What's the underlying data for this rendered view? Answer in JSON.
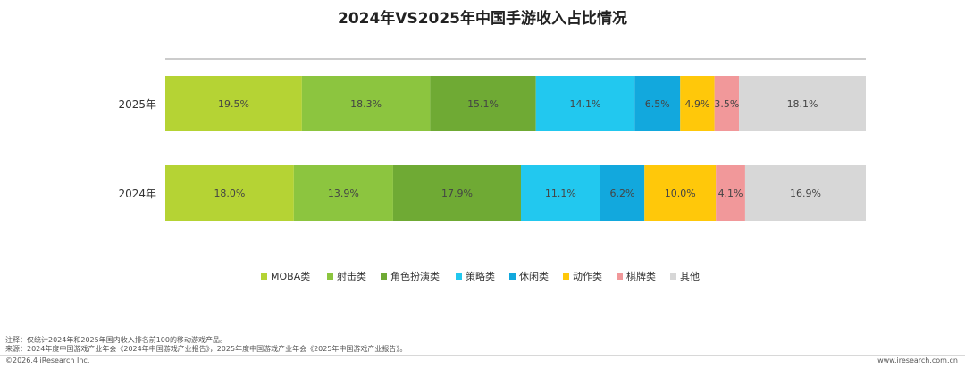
{
  "chart_data": {
    "type": "bar",
    "orientation": "horizontal",
    "stacked": true,
    "title": "2024年VS2025年中国手游收入占比情况",
    "categories": [
      "2025年",
      "2024年"
    ],
    "series": [
      {
        "name": "MOBA类",
        "color": "#b5d334",
        "values": [
          19.5,
          18.0
        ]
      },
      {
        "name": "射击类",
        "color": "#8cc53f",
        "values": [
          18.3,
          13.9
        ]
      },
      {
        "name": "角色扮演类",
        "color": "#6faa34",
        "values": [
          15.1,
          17.9
        ]
      },
      {
        "name": "策略类",
        "color": "#22c8ef",
        "values": [
          14.1,
          11.1
        ]
      },
      {
        "name": "休闲类",
        "color": "#12a8dd",
        "values": [
          6.5,
          6.2
        ]
      },
      {
        "name": "动作类",
        "color": "#ffc80a",
        "values": [
          4.9,
          10.0
        ]
      },
      {
        "name": "棋牌类",
        "color": "#f1989a",
        "values": [
          3.5,
          4.1
        ]
      },
      {
        "name": "其他",
        "color": "#d7d7d7",
        "values": [
          18.1,
          16.9
        ]
      }
    ],
    "value_format": "percent_1dp",
    "xlim": [
      0,
      100
    ],
    "legend_position": "bottom",
    "grid": false
  },
  "footnotes": {
    "note": "注释：仅统计2024年和2025年国内收入排名前100的移动游戏产品。",
    "source": "来源：2024年度中国游戏产业年会《2024年中国游戏产业报告》，2025年度中国游戏产业年会《2025年中国游戏产业报告》。"
  },
  "footer": {
    "copyright": "©2026.4 iResearch Inc.",
    "website": "www.iresearch.com.cn"
  }
}
